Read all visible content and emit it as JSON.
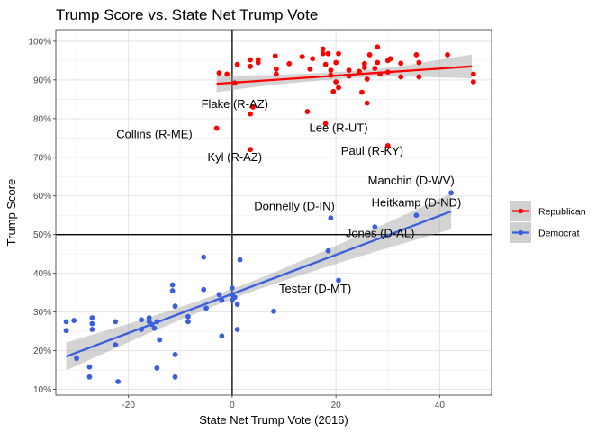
{
  "chart_data": {
    "type": "scatter",
    "title": "Trump Score vs. State Net Trump Vote",
    "xlabel": "State Net Trump Vote (2016)",
    "ylabel": "Trump Score",
    "xlim": [
      -34,
      50
    ],
    "ylim": [
      8.5,
      103
    ],
    "x_ticks": [
      -20,
      0,
      20,
      40
    ],
    "x_tick_labels": [
      "-20",
      "0",
      "20",
      "40"
    ],
    "y_ticks": [
      10,
      20,
      30,
      40,
      50,
      60,
      70,
      80,
      90,
      100
    ],
    "y_tick_labels": [
      "10%",
      "20%",
      "30%",
      "40%",
      "50%",
      "60%",
      "70%",
      "80%",
      "90%",
      "100%"
    ],
    "reference_lines": {
      "x": 0,
      "y": 50
    },
    "grid": true,
    "legend_position": "right",
    "series": [
      {
        "name": "Republican",
        "color": "#ff0000",
        "trend": {
          "x": [
            -3,
            46.2
          ],
          "y": [
            89.0,
            93.5
          ]
        },
        "points": [
          [
            -2.5,
            91.8
          ],
          [
            -1,
            91.5
          ],
          [
            0.5,
            89.2
          ],
          [
            1,
            94
          ],
          [
            3.5,
            95.2
          ],
          [
            3.5,
            93.5
          ],
          [
            5,
            95.2
          ],
          [
            5,
            94.5
          ],
          [
            8.3,
            96.2
          ],
          [
            8.5,
            91.5
          ],
          [
            8.5,
            92.8
          ],
          [
            11,
            94.2
          ],
          [
            13.5,
            96
          ],
          [
            15,
            92.8
          ],
          [
            15.5,
            95.5
          ],
          [
            17.5,
            98
          ],
          [
            17.5,
            96.8
          ],
          [
            18.5,
            96.8
          ],
          [
            18,
            94
          ],
          [
            19,
            92.5
          ],
          [
            20,
            94.5
          ],
          [
            19,
            91.2
          ],
          [
            20,
            89.5
          ],
          [
            20.5,
            96.8
          ],
          [
            19.5,
            87
          ],
          [
            20.5,
            88
          ],
          [
            22.5,
            91
          ],
          [
            22.5,
            92.5
          ],
          [
            24.5,
            92.2
          ],
          [
            25.5,
            93.2
          ],
          [
            25.5,
            94.2
          ],
          [
            26.5,
            96.5
          ],
          [
            27.5,
            93
          ],
          [
            28,
            94.5
          ],
          [
            28,
            98.5
          ],
          [
            26,
            90.2
          ],
          [
            25,
            86.8
          ],
          [
            26,
            84
          ],
          [
            28.5,
            91.5
          ],
          [
            30,
            92
          ],
          [
            30.5,
            95.5
          ],
          [
            30,
            95
          ],
          [
            32.5,
            94.3
          ],
          [
            32.5,
            90.8
          ],
          [
            35.5,
            96.5
          ],
          [
            36,
            94.5
          ],
          [
            36,
            90.8
          ],
          [
            41.5,
            96.5
          ],
          [
            46.5,
            91.5
          ],
          [
            46.5,
            89.5
          ],
          [
            3.5,
            72
          ],
          [
            3.5,
            81.2
          ],
          [
            4,
            83
          ],
          [
            14.5,
            81.8
          ],
          [
            18,
            78.7
          ],
          [
            30,
            73
          ],
          [
            -3,
            77.5
          ]
        ]
      },
      {
        "name": "Democrat",
        "color": "#3a5edc",
        "trend": {
          "x": [
            -32,
            42.2
          ],
          "y": [
            18.5,
            56
          ]
        },
        "points": [
          [
            -32,
            27.5
          ],
          [
            -32,
            25.2
          ],
          [
            -30.5,
            27.8
          ],
          [
            -30,
            18
          ],
          [
            -27.5,
            15.8
          ],
          [
            -27.5,
            13.2
          ],
          [
            -27,
            28.5
          ],
          [
            -27,
            27
          ],
          [
            -27,
            25.5
          ],
          [
            -22.5,
            27.5
          ],
          [
            -22.5,
            21.5
          ],
          [
            -22,
            12
          ],
          [
            -17.5,
            28
          ],
          [
            -17.5,
            25.5
          ],
          [
            -16,
            28.5
          ],
          [
            -16,
            27.5
          ],
          [
            -15.5,
            26.8
          ],
          [
            -15,
            25.8
          ],
          [
            -14.5,
            27.5
          ],
          [
            -14,
            22.8
          ],
          [
            -14.5,
            15.5
          ],
          [
            -11.5,
            35.5
          ],
          [
            -11.5,
            37
          ],
          [
            -11,
            31.5
          ],
          [
            -11,
            19
          ],
          [
            -11,
            13.2
          ],
          [
            -8.5,
            28.8
          ],
          [
            -8.5,
            27.5
          ],
          [
            -5.5,
            35.8
          ],
          [
            -5.5,
            44.2
          ],
          [
            -5,
            31
          ],
          [
            -2.5,
            34.5
          ],
          [
            -2,
            33
          ],
          [
            -2,
            23.8
          ],
          [
            0,
            36.2
          ],
          [
            0,
            34.5
          ],
          [
            0,
            33
          ],
          [
            0.5,
            33.8
          ],
          [
            1,
            32
          ],
          [
            1,
            25.5
          ],
          [
            1.5,
            43.5
          ],
          [
            8,
            30.2
          ],
          [
            19,
            54.3
          ],
          [
            18.5,
            45.8
          ],
          [
            20.5,
            38.2
          ],
          [
            27.5,
            52
          ],
          [
            35.5,
            55
          ],
          [
            42.2,
            60.8
          ]
        ]
      }
    ],
    "annotations": [
      {
        "text": "Flake (R-AZ)",
        "x": 0.5,
        "y": 82.8
      },
      {
        "text": "Collins (R-ME)",
        "x": -15,
        "y": 75
      },
      {
        "text": "Kyl (R-AZ)",
        "x": 0.5,
        "y": 69
      },
      {
        "text": "Lee (R-UT)",
        "x": 20.5,
        "y": 76.6
      },
      {
        "text": "Paul (R-KY)",
        "x": 27,
        "y": 70.7
      },
      {
        "text": "Manchin (D-WV)",
        "x": 34.5,
        "y": 63
      },
      {
        "text": "Heitkamp (D-ND)",
        "x": 35.5,
        "y": 57.3
      },
      {
        "text": "Donnelly (D-IN)",
        "x": 12,
        "y": 56.3
      },
      {
        "text": "Jones (D-AL)",
        "x": 28.5,
        "y": 49.3
      },
      {
        "text": "Tester (D-MT)",
        "x": 16,
        "y": 35
      }
    ]
  }
}
